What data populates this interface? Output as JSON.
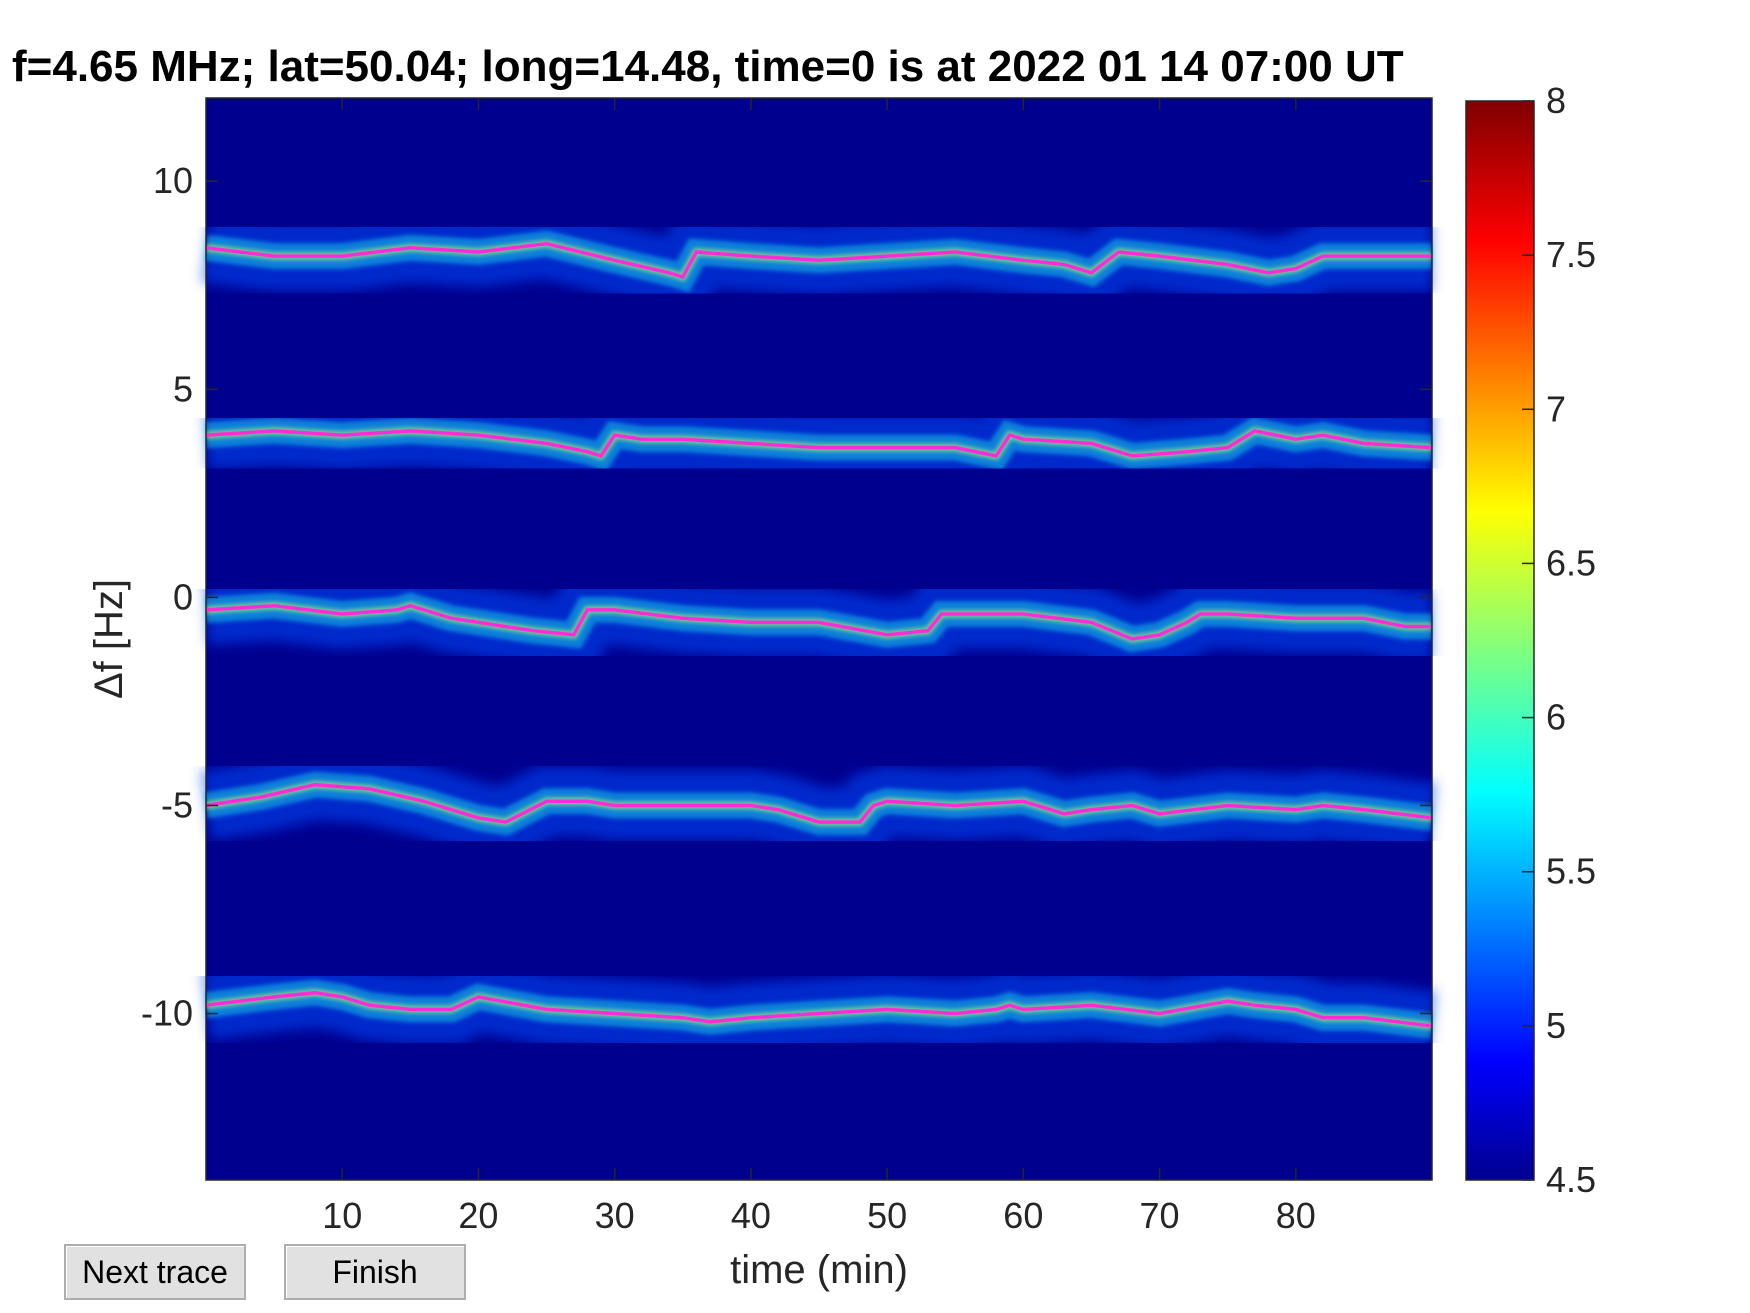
{
  "title": "f=4.65 MHz;  lat=50.04; long=14.48, time=0 is at 2022 01 14 07:00 UT",
  "buttons": {
    "next": "Next trace",
    "finish": "Finish"
  },
  "colors": {
    "background": "#00008f",
    "trace": "#ff2bd6",
    "axis": "#262626"
  },
  "chart_data": {
    "type": "heatmap",
    "title": "f=4.65 MHz;  lat=50.04; long=14.48, time=0 is at 2022 01 14 07:00 UT",
    "xlabel": "time (min)",
    "ylabel": "Δf [Hz]",
    "xlim": [
      0,
      90
    ],
    "ylim": [
      -14,
      12
    ],
    "xticks": [
      "10",
      "20",
      "30",
      "40",
      "50",
      "60",
      "70",
      "80"
    ],
    "yticks": [
      "10",
      "5",
      "0",
      "-5",
      "-10"
    ],
    "colorbar": {
      "colormap": "jet",
      "range": [
        4.5,
        8
      ],
      "ticks": [
        "8",
        "7.5",
        "7",
        "6.5",
        "6",
        "5.5",
        "5",
        "4.5"
      ]
    },
    "series": [
      {
        "x": [
          0,
          5,
          10,
          15,
          20,
          25,
          30,
          34,
          35,
          36,
          40,
          45,
          50,
          55,
          60,
          63,
          65,
          67,
          70,
          75,
          78,
          80,
          82,
          85,
          90
        ],
        "y": [
          8.4,
          8.2,
          8.2,
          8.4,
          8.3,
          8.5,
          8.1,
          7.8,
          7.7,
          8.3,
          8.2,
          8.1,
          8.2,
          8.3,
          8.1,
          8.0,
          7.8,
          8.3,
          8.2,
          8.0,
          7.8,
          7.9,
          8.2,
          8.2,
          8.2
        ]
      },
      {
        "x": [
          0,
          5,
          10,
          15,
          20,
          25,
          28,
          29,
          30,
          32,
          35,
          40,
          45,
          50,
          55,
          58,
          59,
          60,
          65,
          68,
          72,
          75,
          77,
          80,
          82,
          85,
          90
        ],
        "y": [
          3.9,
          4.0,
          3.9,
          4.0,
          3.9,
          3.7,
          3.5,
          3.4,
          3.9,
          3.8,
          3.8,
          3.7,
          3.6,
          3.6,
          3.6,
          3.4,
          3.9,
          3.8,
          3.7,
          3.4,
          3.5,
          3.6,
          4.0,
          3.8,
          3.9,
          3.7,
          3.6
        ]
      },
      {
        "x": [
          0,
          5,
          10,
          14,
          15,
          18,
          20,
          24,
          27,
          28,
          30,
          35,
          40,
          45,
          50,
          53,
          54,
          55,
          60,
          65,
          68,
          70,
          72,
          73,
          75,
          80,
          85,
          88,
          90
        ],
        "y": [
          -0.3,
          -0.2,
          -0.4,
          -0.3,
          -0.2,
          -0.5,
          -0.6,
          -0.8,
          -0.9,
          -0.3,
          -0.3,
          -0.5,
          -0.6,
          -0.6,
          -0.9,
          -0.8,
          -0.4,
          -0.4,
          -0.4,
          -0.6,
          -1.0,
          -0.9,
          -0.6,
          -0.4,
          -0.4,
          -0.5,
          -0.5,
          -0.7,
          -0.7
        ]
      },
      {
        "x": [
          0,
          4,
          8,
          12,
          16,
          20,
          22,
          25,
          28,
          30,
          35,
          40,
          42,
          45,
          48,
          49,
          50,
          55,
          60,
          63,
          65,
          68,
          70,
          75,
          80,
          82,
          85,
          90
        ],
        "y": [
          -5.0,
          -4.8,
          -4.5,
          -4.6,
          -4.9,
          -5.3,
          -5.4,
          -4.9,
          -4.9,
          -5.0,
          -5.0,
          -5.0,
          -5.1,
          -5.4,
          -5.4,
          -5.0,
          -4.9,
          -5.0,
          -4.9,
          -5.2,
          -5.1,
          -5.0,
          -5.2,
          -5.0,
          -5.1,
          -5.0,
          -5.1,
          -5.3
        ]
      },
      {
        "x": [
          0,
          5,
          8,
          10,
          12,
          15,
          18,
          20,
          25,
          30,
          35,
          37,
          40,
          45,
          50,
          55,
          58,
          59,
          60,
          65,
          70,
          75,
          77,
          80,
          82,
          85,
          90
        ],
        "y": [
          -9.8,
          -9.6,
          -9.5,
          -9.6,
          -9.8,
          -9.9,
          -9.9,
          -9.6,
          -9.9,
          -10.0,
          -10.1,
          -10.2,
          -10.1,
          -10.0,
          -9.9,
          -10.0,
          -9.9,
          -9.8,
          -9.9,
          -9.8,
          -10.0,
          -9.7,
          -9.8,
          -9.9,
          -10.1,
          -10.1,
          -10.3
        ]
      }
    ]
  }
}
